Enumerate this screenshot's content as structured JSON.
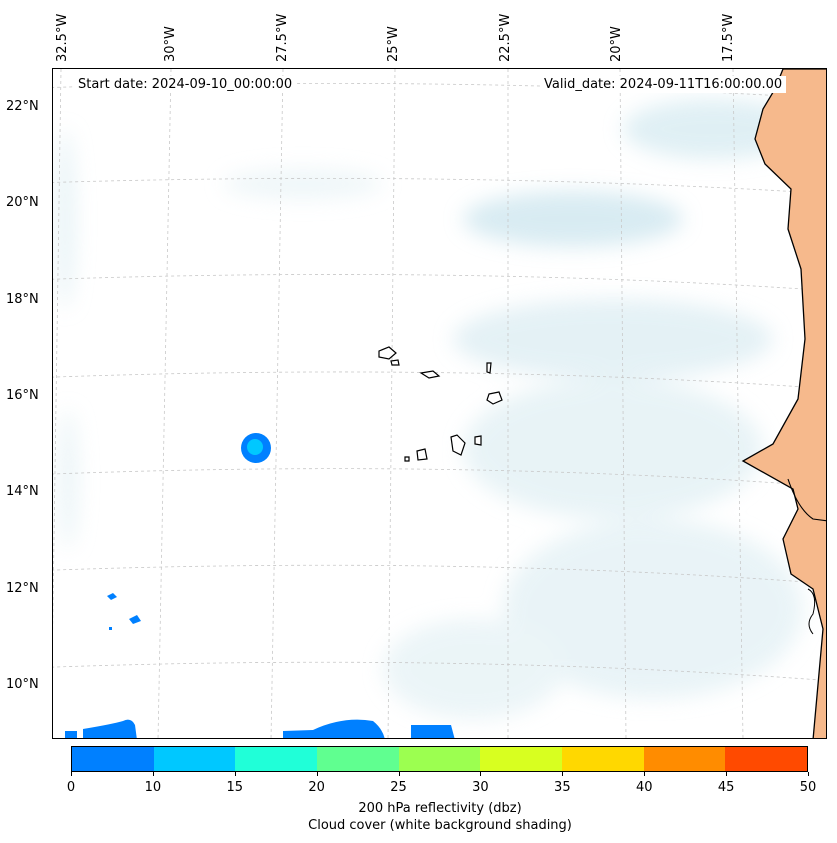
{
  "map": {
    "lon_labels": [
      "32.5°W",
      "30°W",
      "27.5°W",
      "25°W",
      "22.5°W",
      "20°W",
      "17.5°W"
    ],
    "lat_labels": [
      "22°N",
      "20°N",
      "18°N",
      "16°N",
      "14°N",
      "12°N",
      "10°N"
    ],
    "start_date": "Start date: 2024-09-10_00:00:00",
    "valid_date": "Valid_date: 2024-09-11T16:00:00.00",
    "land_color": "#f6b98c",
    "cloud_color": "#cfe6ee",
    "reflectivity_color": "#0080ff"
  },
  "colorbar": {
    "ticks": [
      "0",
      "10",
      "15",
      "20",
      "25",
      "30",
      "35",
      "40",
      "45",
      "50"
    ],
    "colors": [
      "#0080ff",
      "#00c8ff",
      "#20ffd8",
      "#60ff90",
      "#9cff50",
      "#d8ff20",
      "#ffd800",
      "#ff8c00",
      "#ff4a00"
    ],
    "label_line1": "200 hPa reflectivity (dbz)",
    "label_line2": "Cloud cover (white background shading)"
  }
}
